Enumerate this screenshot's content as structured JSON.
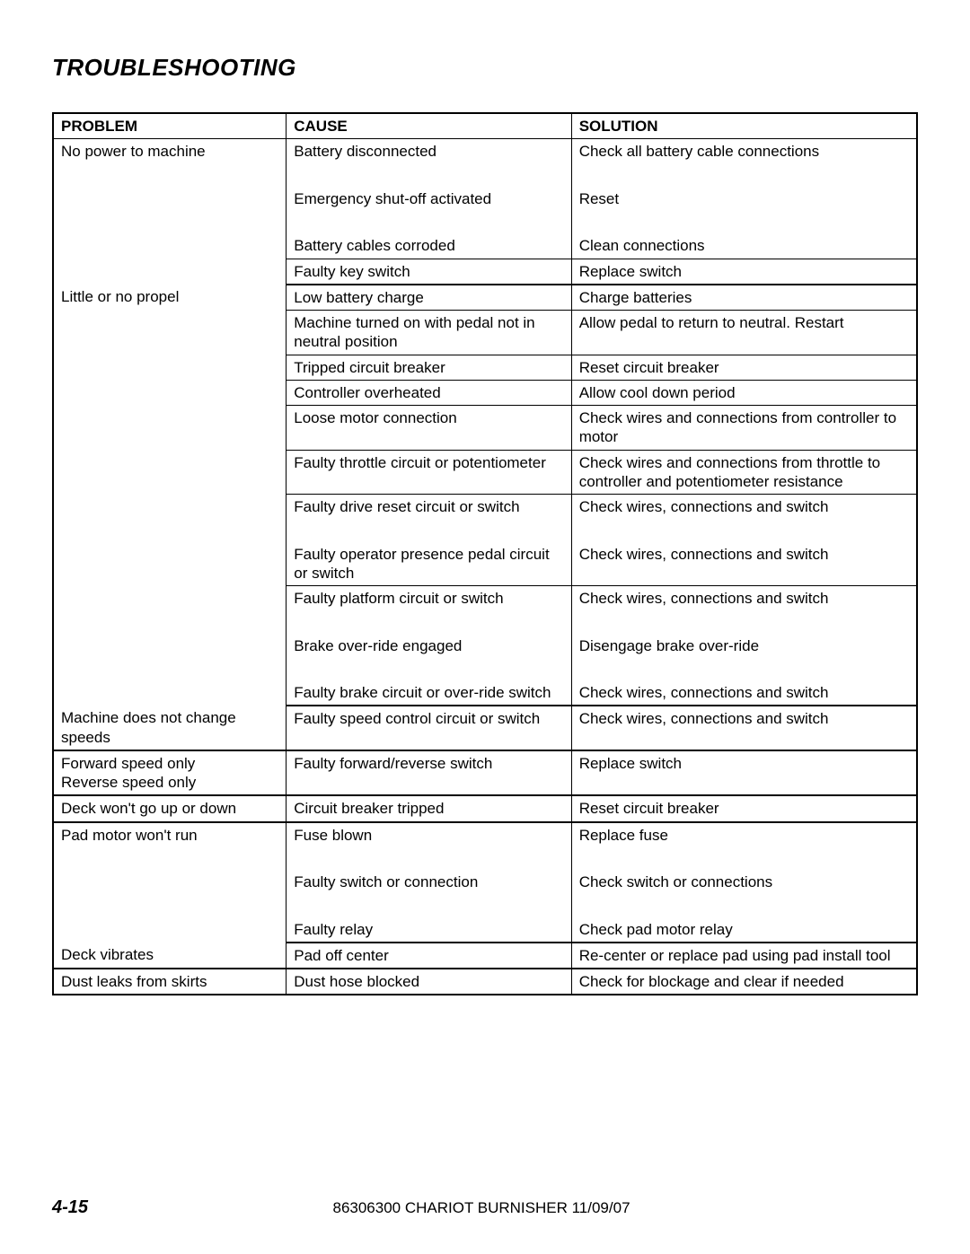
{
  "title": "TROUBLESHOOTING",
  "columns": [
    "PROBLEM",
    "CAUSE",
    "SOLUTION"
  ],
  "groups": [
    {
      "problem": "No power to machine",
      "rows": [
        {
          "cause": "Battery disconnected",
          "solution": "Check all battery cable connections",
          "sep": false,
          "gap_after": true
        },
        {
          "cause": "Emergency shut-off activated",
          "solution": "Reset",
          "sep": false,
          "gap_after": true
        },
        {
          "cause": "Battery cables corroded",
          "solution": "Clean connections",
          "sep": true
        },
        {
          "cause": "Faulty key switch",
          "solution": "Replace switch",
          "sep": false
        }
      ]
    },
    {
      "problem": "Little or no propel",
      "rows": [
        {
          "cause": "Low battery charge",
          "solution": "Charge batteries",
          "sep": true
        },
        {
          "cause": "Machine turned on with pedal not in neutral position",
          "solution": "Allow pedal to return to neutral. Restart",
          "sep": true
        },
        {
          "cause": "Tripped circuit breaker",
          "solution": "Reset circuit breaker",
          "sep": true
        },
        {
          "cause": "Controller overheated",
          "solution": "Allow cool down period",
          "sep": true
        },
        {
          "cause": "Loose motor connection",
          "solution": "Check wires and connections from controller to motor",
          "sep": true
        },
        {
          "cause": "Faulty throttle circuit or potentiometer",
          "solution": "Check wires and connections from throttle to controller and potentiometer resistance",
          "sep": true
        },
        {
          "cause": "Faulty drive reset circuit or switch",
          "solution": "Check wires, connections and switch",
          "sep": false,
          "gap_after": true
        },
        {
          "cause": "Faulty operator presence pedal circuit or switch",
          "solution": "Check wires, connections and switch",
          "sep": true
        },
        {
          "cause": "Faulty platform circuit or switch",
          "solution": "Check wires, connections and switch",
          "sep": false,
          "gap_after": true
        },
        {
          "cause": "Brake over-ride engaged",
          "solution": "Disengage brake over-ride",
          "sep": false,
          "gap_after": true
        },
        {
          "cause": "Faulty brake circuit or over-ride switch",
          "solution": "Check wires, connections and switch",
          "sep": false
        }
      ]
    },
    {
      "problem": "Machine does not change speeds",
      "rows": [
        {
          "cause": "Faulty speed control circuit or switch",
          "solution": "Check wires, connections and switch",
          "sep": false
        }
      ]
    },
    {
      "problem": "Forward speed only Reverse speed only",
      "problem_lines": [
        "Forward speed only",
        "Reverse speed only"
      ],
      "rows": [
        {
          "cause": "Faulty forward/reverse switch",
          "solution": "Replace switch",
          "sep": false
        }
      ]
    },
    {
      "problem": "Deck won't go up or down",
      "rows": [
        {
          "cause": "Circuit breaker tripped",
          "solution": "Reset circuit breaker",
          "sep": false
        }
      ]
    },
    {
      "problem": "Pad motor won't run",
      "rows": [
        {
          "cause": "Fuse blown",
          "solution": "Replace fuse",
          "sep": false,
          "gap_after": true
        },
        {
          "cause": "Faulty switch or connection",
          "solution": "Check switch or connections",
          "sep": false,
          "gap_after": true
        },
        {
          "cause": "Faulty relay",
          "solution": "Check pad motor relay",
          "sep": false
        }
      ]
    },
    {
      "problem": "Deck vibrates",
      "rows": [
        {
          "cause": "Pad off center",
          "solution": "Re-center or replace pad using pad install tool",
          "sep": false
        }
      ]
    },
    {
      "problem": "Dust leaks from skirts",
      "rows": [
        {
          "cause": "Dust hose blocked",
          "solution": "Check for blockage and clear if needed",
          "sep": false
        }
      ],
      "last": true
    }
  ],
  "footer": {
    "page": "4-15",
    "doc": "86306300 CHARIOT BURNISHER  11/09/07"
  }
}
